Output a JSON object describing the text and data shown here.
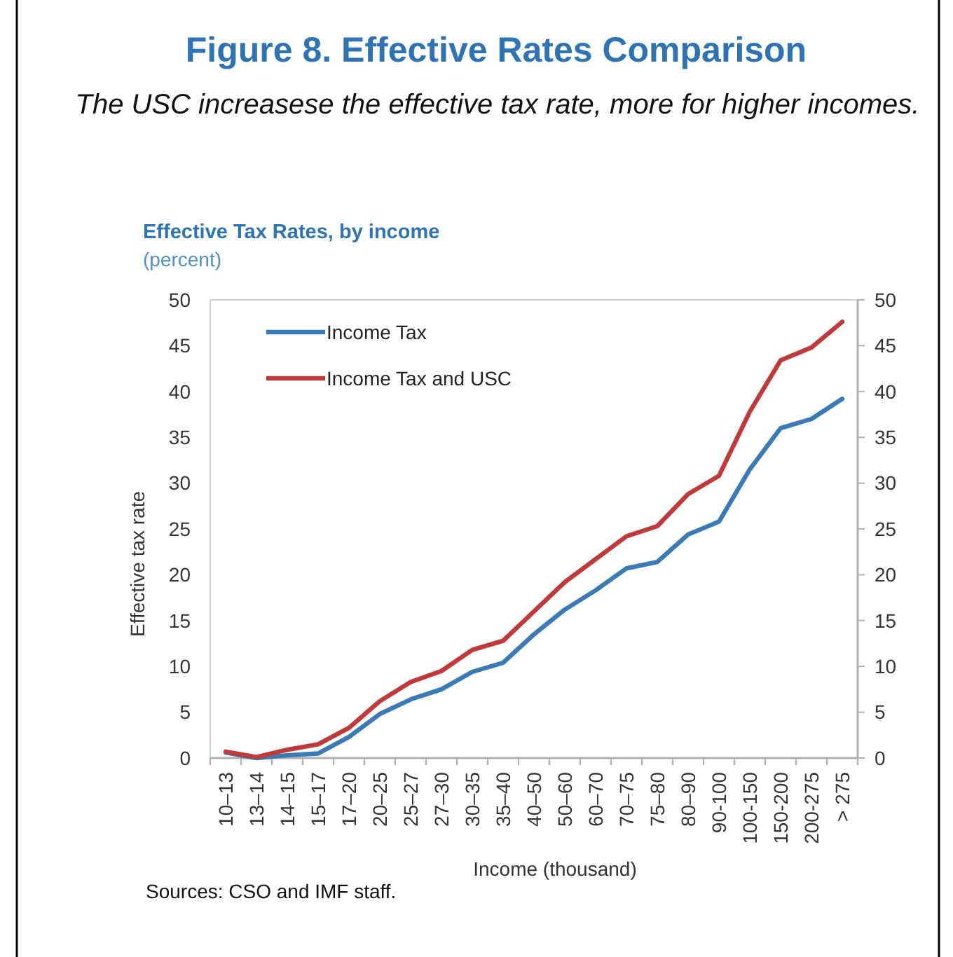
{
  "chart_data": {
    "type": "line",
    "title": "Figure 8. Effective Rates Comparison",
    "subtitle": "The USC increasese  the effective tax rate, more for higher incomes.",
    "annotations": [
      "Effective Tax Rates, by income",
      "(percent)",
      "Sources: CSO and IMF staff."
    ],
    "xlabel": "Income (thousand)",
    "ylabel": "Effective tax rate",
    "categories": [
      "10–13",
      "13–14",
      "14–15",
      "15–17",
      "17–20",
      "20–25",
      "25–27",
      "27–30",
      "30–35",
      "35–40",
      "40–50",
      "50–60",
      "60–70",
      "70–75",
      "75–80",
      "80–90",
      "90-100",
      "100-150",
      "150-200",
      "200-275",
      "> 275"
    ],
    "series": [
      {
        "name": "Income Tax",
        "color": "#3a7ab5",
        "values": [
          0.6,
          0,
          0.3,
          0.5,
          2.3,
          4.8,
          6.4,
          7.5,
          9.4,
          10.4,
          13.5,
          16.2,
          18.3,
          20.7,
          21.4,
          24.4,
          25.8,
          31.5,
          36,
          37,
          39.2
        ]
      },
      {
        "name": "Income Tax and USC",
        "color": "#c0393b",
        "values": [
          0.7,
          0.1,
          0.9,
          1.5,
          3.3,
          6.2,
          8.3,
          9.5,
          11.8,
          12.8,
          16,
          19.2,
          21.7,
          24.2,
          25.3,
          28.8,
          30.8,
          37.8,
          43.4,
          44.8,
          47.6
        ]
      }
    ],
    "ylim": [
      0,
      50
    ],
    "yticks": [
      0,
      5,
      10,
      15,
      20,
      25,
      30,
      35,
      40,
      45,
      50
    ],
    "y2lim": [
      0,
      50
    ],
    "y2ticks": [
      0,
      5,
      10,
      15,
      20,
      25,
      30,
      35,
      40,
      45,
      50
    ],
    "legend": "top left",
    "grid": false,
    "marker": "none",
    "line_style": "solid"
  }
}
